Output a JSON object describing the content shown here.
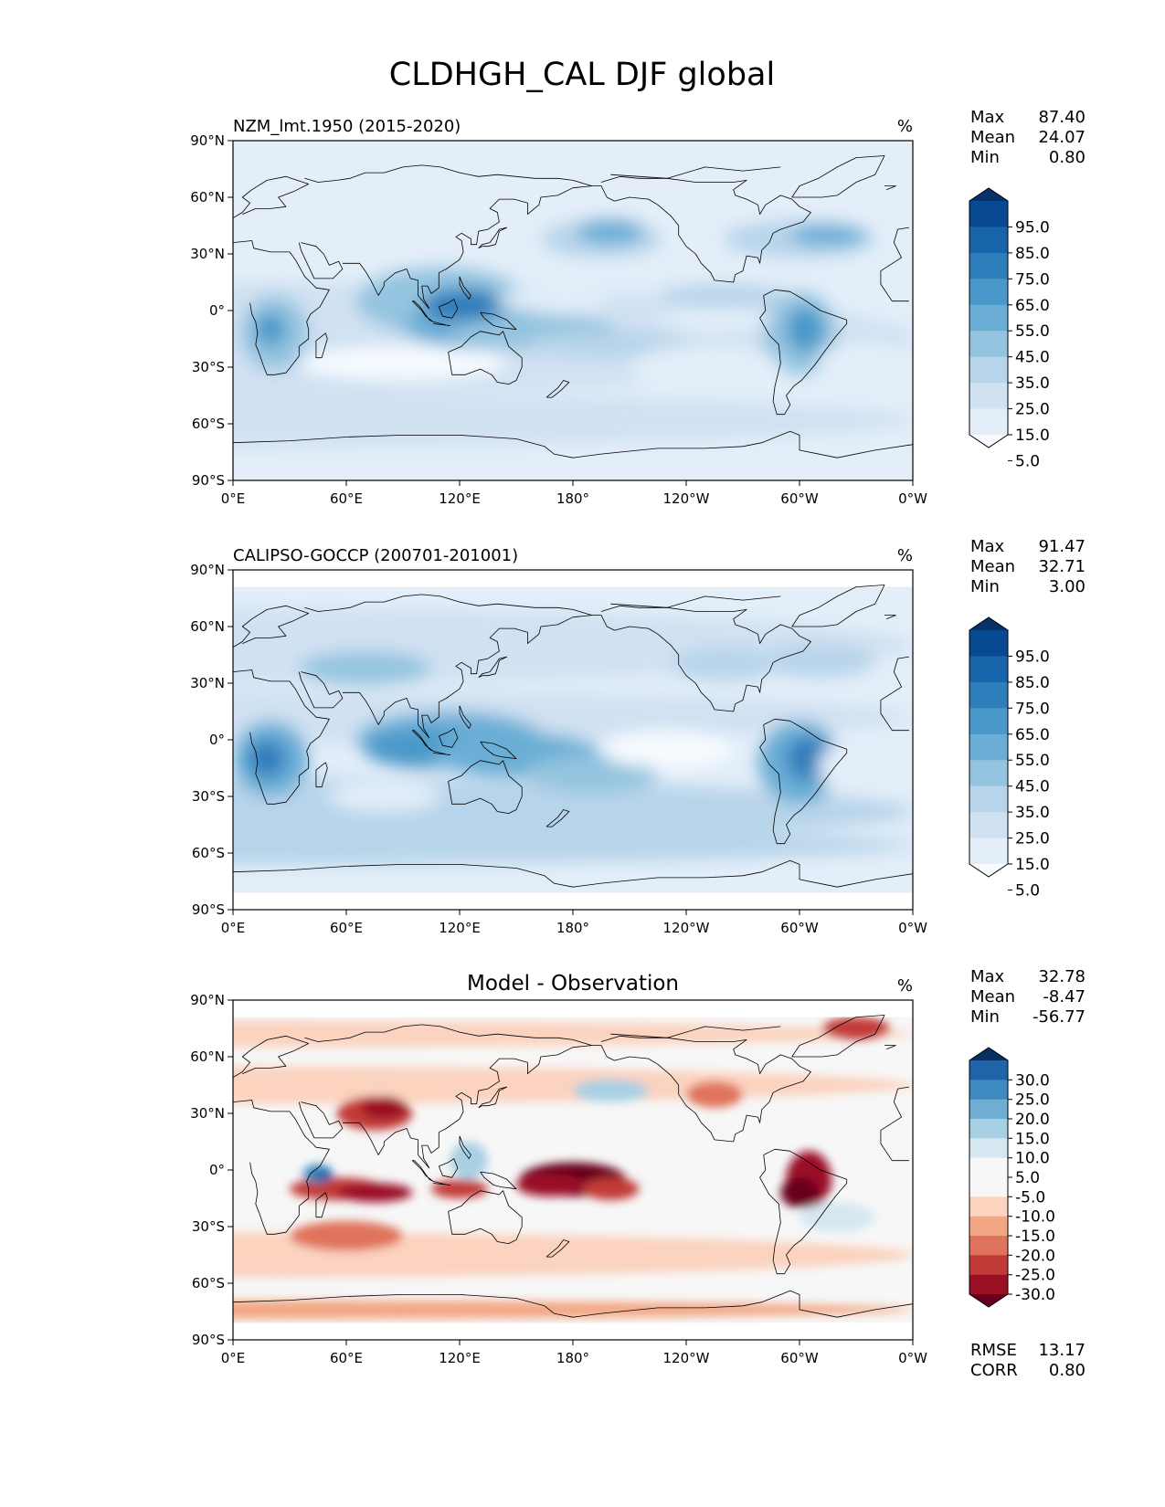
{
  "figure_title": "CLDHGH_CAL DJF global",
  "x_ticks": [
    "0°E",
    "60°E",
    "120°E",
    "180°",
    "120°W",
    "60°W",
    "0°W"
  ],
  "y_ticks": [
    "90°N",
    "60°N",
    "30°N",
    "0°",
    "30°S",
    "60°S",
    "90°S"
  ],
  "colors": {
    "blues": [
      "#f7fbff",
      "#e3eef9",
      "#d0e1f2",
      "#b7d4ea",
      "#94c4df",
      "#6aaed6",
      "#4a98c9",
      "#2e7ebc",
      "#1764ab",
      "#084a91",
      "#08306b"
    ],
    "diverging": [
      "#67001f",
      "#9b1025",
      "#c33b38",
      "#e0735c",
      "#f3a784",
      "#fbd3bf",
      "#f7f7f7",
      "#f7f7f7",
      "#d6e7f1",
      "#a8d0e4",
      "#6eaed2",
      "#3e8ac0",
      "#1f63a8",
      "#053061"
    ]
  },
  "chart_data": [
    {
      "type": "heatmap",
      "title": "NZM_lmt.1950 (2015-2020)",
      "units": "%",
      "xlim": [
        0,
        360
      ],
      "ylim": [
        -90,
        90
      ],
      "stats": [
        {
          "label": "Max",
          "value": "87.40"
        },
        {
          "label": "Mean",
          "value": "24.07"
        },
        {
          "label": "Min",
          "value": "0.80"
        }
      ],
      "colorbar": {
        "labels": [
          "95.0",
          "85.0",
          "75.0",
          "65.0",
          "55.0",
          "45.0",
          "35.0",
          "25.0",
          "15.0",
          "5.0"
        ],
        "extend": "both",
        "palette": "blues"
      }
    },
    {
      "type": "heatmap",
      "title": "CALIPSO-GOCCP (200701-201001)",
      "units": "%",
      "xlim": [
        0,
        360
      ],
      "ylim": [
        -90,
        90
      ],
      "stats": [
        {
          "label": "Max",
          "value": "91.47"
        },
        {
          "label": "Mean",
          "value": "32.71"
        },
        {
          "label": "Min",
          "value": "3.00"
        }
      ],
      "colorbar": {
        "labels": [
          "95.0",
          "85.0",
          "75.0",
          "65.0",
          "55.0",
          "45.0",
          "35.0",
          "25.0",
          "15.0",
          "5.0"
        ],
        "extend": "both",
        "palette": "blues"
      }
    },
    {
      "type": "heatmap",
      "title": "Model - Observation",
      "units": "%",
      "xlim": [
        0,
        360
      ],
      "ylim": [
        -90,
        90
      ],
      "stats": [
        {
          "label": "Max",
          "value": "32.78"
        },
        {
          "label": "Mean",
          "value": "-8.47"
        },
        {
          "label": "Min",
          "value": "-56.77"
        }
      ],
      "colorbar": {
        "labels": [
          "30.0",
          "25.0",
          "20.0",
          "15.0",
          "10.0",
          "5.0",
          "-5.0",
          "-10.0",
          "-15.0",
          "-20.0",
          "-25.0",
          "-30.0"
        ],
        "extend": "both",
        "palette": "diverging"
      },
      "metrics": [
        {
          "label": "RMSE",
          "value": "13.17"
        },
        {
          "label": "CORR",
          "value": "0.80"
        }
      ]
    }
  ]
}
